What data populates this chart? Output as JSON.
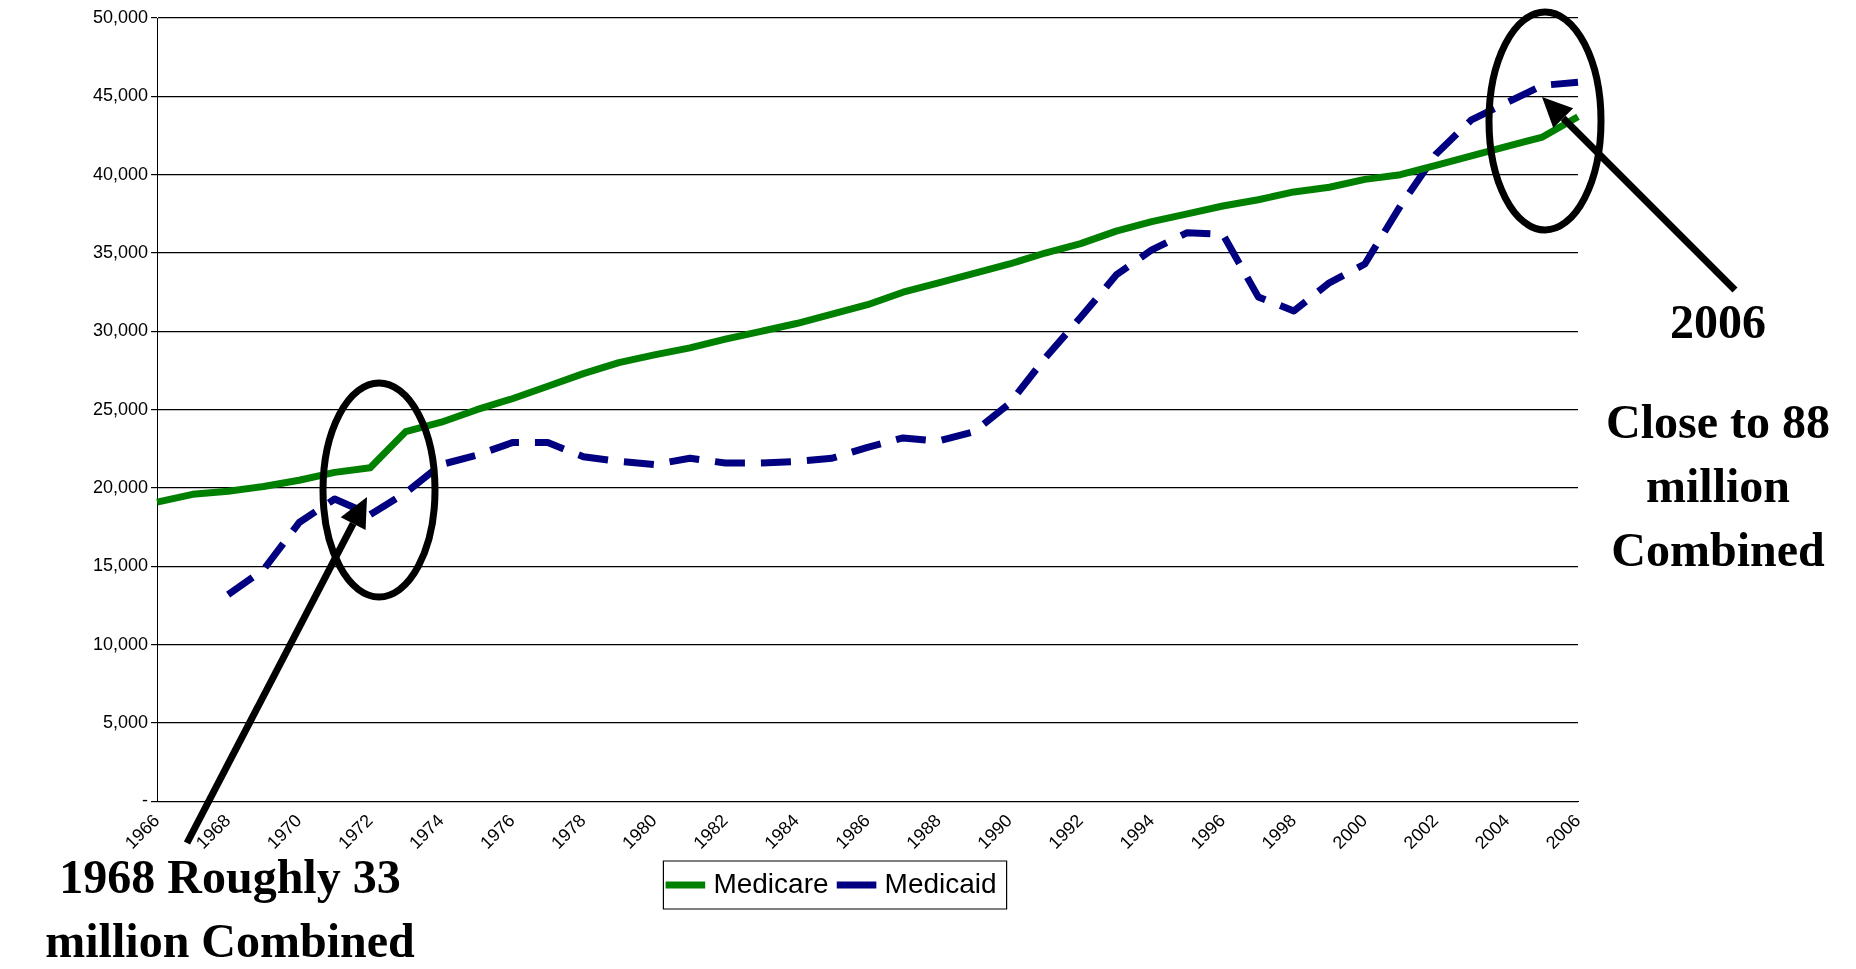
{
  "chart_data": {
    "type": "line",
    "categories": [
      "1966",
      null,
      "1968",
      null,
      "1970",
      null,
      "1972",
      null,
      "1974",
      null,
      "1976",
      null,
      "1978",
      null,
      "1980",
      null,
      "1982",
      null,
      "1984",
      null,
      "1986",
      null,
      "1988",
      null,
      "1990",
      null,
      "1992",
      null,
      "1994",
      null,
      "1996",
      null,
      "1998",
      null,
      "2000",
      null,
      "2002",
      null,
      "2004",
      null,
      "2006"
    ],
    "series": [
      {
        "name": "Medicare",
        "color": "#008000",
        "line_style": "solid",
        "values": [
          19100,
          19600,
          19800,
          20100,
          20500,
          21000,
          21300,
          23600,
          24200,
          25000,
          25700,
          26500,
          27300,
          28000,
          28500,
          28950,
          29500,
          30000,
          30500,
          31100,
          31700,
          32500,
          33100,
          33700,
          34300,
          35000,
          35600,
          36400,
          37000,
          37500,
          38000,
          38400,
          38900,
          39200,
          39700,
          40000,
          40600,
          41200,
          41800,
          42400,
          43700
        ]
      },
      {
        "name": "Medicaid",
        "color": "#000080",
        "line_style": "dashed",
        "values": [
          null,
          null,
          13200,
          14800,
          17800,
          19300,
          18300,
          19700,
          21500,
          22100,
          22900,
          22900,
          22000,
          21700,
          21500,
          21900,
          21600,
          21600,
          21700,
          21900,
          22600,
          23200,
          23000,
          23600,
          25400,
          28300,
          30900,
          33600,
          35200,
          36300,
          36200,
          32200,
          31300,
          33100,
          34300,
          38000,
          41300,
          43500,
          44600,
          45700,
          45900
        ]
      }
    ],
    "ylim": [
      0,
      50000
    ],
    "yticks": [
      {
        "value": 0,
        "label": "-"
      },
      {
        "value": 5000,
        "label": "5,000"
      },
      {
        "value": 10000,
        "label": "10,000"
      },
      {
        "value": 15000,
        "label": "15,000"
      },
      {
        "value": 20000,
        "label": "20,000"
      },
      {
        "value": 25000,
        "label": "25,000"
      },
      {
        "value": 30000,
        "label": "30,000"
      },
      {
        "value": 35000,
        "label": "35,000"
      },
      {
        "value": 40000,
        "label": "40,000"
      },
      {
        "value": 45000,
        "label": "45,000"
      },
      {
        "value": 50000,
        "label": "50,000"
      }
    ],
    "grid": "y",
    "legend": "bottom",
    "marker": "none",
    "annotations": [
      "1968 Roughly 33 million Combined",
      "2006",
      "Close to 88 million Combined"
    ]
  }
}
